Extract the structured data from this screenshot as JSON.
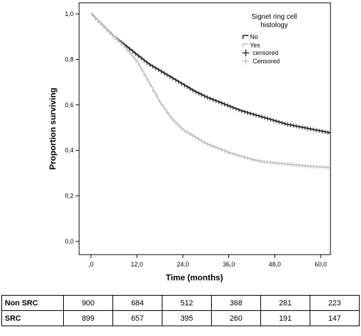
{
  "chart_data": {
    "type": "line",
    "xlabel": "Time (months)",
    "ylabel": "Proportion surviving",
    "xlim": [
      0,
      63
    ],
    "ylim": [
      0,
      1.0
    ],
    "x_ticks": [
      0,
      12,
      24,
      36,
      48,
      60
    ],
    "x_tick_labels": [
      ",0",
      "12,0",
      "24,0",
      "36,0",
      "48,0",
      "60,0"
    ],
    "y_ticks": [
      0,
      0.2,
      0.4,
      0.6,
      0.8,
      1.0
    ],
    "y_tick_labels": [
      "0,0",
      "0,2",
      "0,4",
      "0,6",
      "0,8",
      "1,0"
    ],
    "grid": false,
    "legend": {
      "title": "Signet ring cell histology",
      "title_lines": [
        "Signet ring cell",
        "histology"
      ],
      "placement": "top-right",
      "entries": [
        "No",
        "Yes",
        "censored",
        "Censored"
      ]
    },
    "colors": {
      "no": "#1a1a1a",
      "yes": "#bdbdbd"
    },
    "series": [
      {
        "name": "No",
        "x": [
          0,
          3,
          6,
          9,
          12,
          15,
          18,
          21,
          24,
          27,
          30,
          33,
          36,
          39,
          42,
          45,
          48,
          51,
          54,
          57,
          60,
          63
        ],
        "y": [
          1.0,
          0.95,
          0.9,
          0.86,
          0.82,
          0.78,
          0.75,
          0.72,
          0.69,
          0.66,
          0.635,
          0.615,
          0.595,
          0.575,
          0.56,
          0.545,
          0.53,
          0.515,
          0.505,
          0.495,
          0.485,
          0.475
        ]
      },
      {
        "name": "Yes",
        "x": [
          0,
          3,
          6,
          9,
          12,
          15,
          18,
          21,
          24,
          27,
          30,
          33,
          36,
          39,
          42,
          45,
          48,
          51,
          54,
          57,
          60,
          63
        ],
        "y": [
          1.0,
          0.95,
          0.9,
          0.85,
          0.79,
          0.7,
          0.61,
          0.54,
          0.49,
          0.46,
          0.43,
          0.41,
          0.39,
          0.375,
          0.36,
          0.35,
          0.345,
          0.34,
          0.335,
          0.33,
          0.327,
          0.324
        ]
      }
    ]
  },
  "risk_table": {
    "rows": [
      {
        "label": "Non SRC",
        "values": [
          "900",
          "684",
          "512",
          "368",
          "281",
          "223"
        ]
      },
      {
        "label": "SRC",
        "values": [
          "899",
          "657",
          "395",
          "260",
          "191",
          "147"
        ]
      }
    ]
  }
}
